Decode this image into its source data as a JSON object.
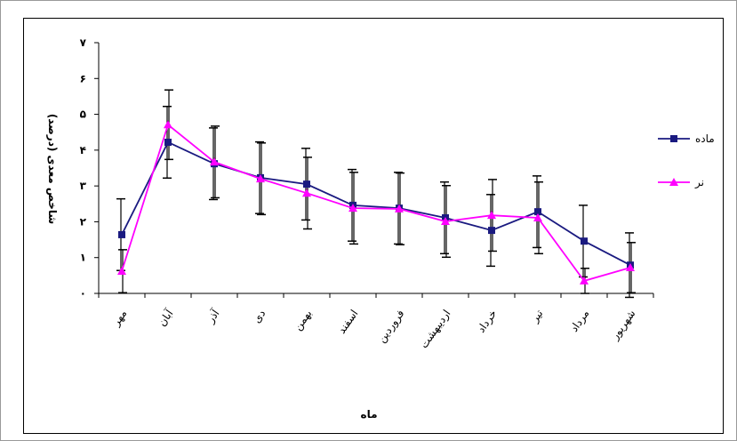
{
  "chart_data": {
    "type": "line",
    "xlabel": "ماه",
    "ylabel": "شاخص معدی (درصد)",
    "categories": [
      "مهر",
      "آبان",
      "آذر",
      "دی",
      "بهمن",
      "اسفند",
      "فروردین",
      "اردیبهشت",
      "خرداد",
      "تیر",
      "مرداد",
      "شهریور"
    ],
    "series": [
      {
        "name": "ماده",
        "color": "#1a1a80",
        "marker": "square",
        "values": [
          1.64,
          4.22,
          3.62,
          3.23,
          3.05,
          2.46,
          2.38,
          2.11,
          1.76,
          2.28,
          1.46,
          0.79
        ],
        "errors": [
          1.0,
          1.0,
          1.0,
          1.0,
          1.0,
          1.0,
          1.0,
          1.0,
          1.0,
          1.0,
          1.0,
          0.9
        ]
      },
      {
        "name": "نر",
        "color": "#ff00ff",
        "marker": "triangle",
        "values": [
          0.62,
          4.71,
          3.67,
          3.2,
          2.8,
          2.38,
          2.36,
          2.01,
          2.18,
          2.11,
          0.35,
          0.72
        ],
        "errors": [
          0.6,
          0.97,
          1.0,
          1.0,
          1.0,
          1.0,
          1.0,
          1.0,
          1.0,
          1.0,
          0.35,
          0.7
        ]
      }
    ],
    "ylim": [
      0,
      7
    ],
    "yticks": [
      {
        "value": 0,
        "label": "۰"
      },
      {
        "value": 1,
        "label": "۱"
      },
      {
        "value": 2,
        "label": "۲"
      },
      {
        "value": 3,
        "label": "۳"
      },
      {
        "value": 4,
        "label": "۴"
      },
      {
        "value": 5,
        "label": "۵"
      },
      {
        "value": 6,
        "label": "۶"
      },
      {
        "value": 7,
        "label": "۷"
      }
    ],
    "grid": false,
    "legend": "right"
  }
}
